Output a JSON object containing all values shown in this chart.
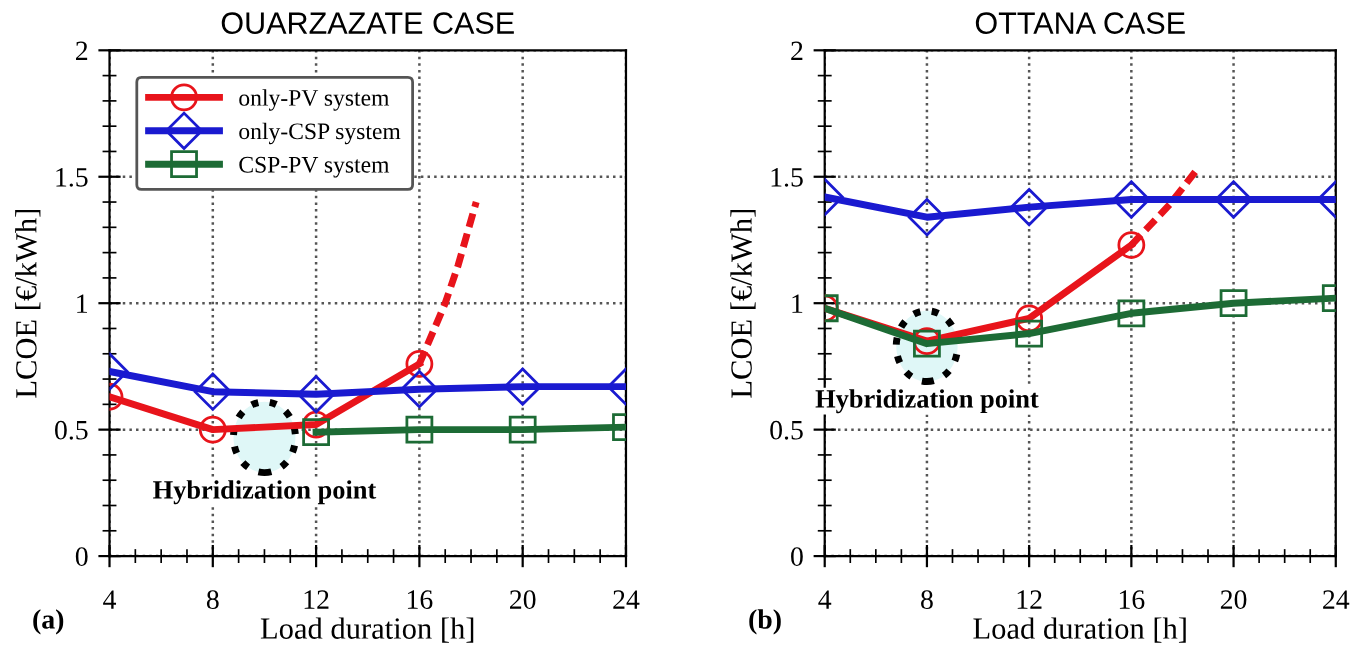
{
  "chart_data": [
    {
      "type": "line",
      "title": "OUARZAZATE CASE",
      "xlabel": "Load duration [h]",
      "ylabel": "LCOE [€/kWh]",
      "x": [
        4,
        8,
        12,
        16,
        20,
        24
      ],
      "xlim": [
        4,
        24
      ],
      "xticks": [
        4,
        8,
        12,
        16,
        20,
        24
      ],
      "ylim": [
        0,
        2
      ],
      "yticks": [
        0,
        0.5,
        1,
        1.5,
        2
      ],
      "grid": true,
      "legend": "top left",
      "series": [
        {
          "name": "only-PV system",
          "color": "#e8141b",
          "marker": "circle",
          "x": [
            4,
            8,
            12,
            16
          ],
          "values": [
            0.63,
            0.5,
            0.52,
            0.76
          ]
        },
        {
          "color": "#e8141b",
          "marker": "none",
          "line_style": "dashed",
          "x": [
            16,
            17,
            17.5,
            18.2
          ],
          "values": [
            0.76,
            1.0,
            1.15,
            1.4
          ]
        },
        {
          "name": "only-CSP system",
          "color": "#1a1ad0",
          "marker": "diamond",
          "values": [
            0.73,
            0.65,
            0.64,
            0.66,
            0.67,
            0.67
          ]
        },
        {
          "name": "CSP-PV system",
          "color": "#1d6b35",
          "marker": "square",
          "values": [
            null,
            null,
            0.49,
            0.5,
            0.5,
            0.51
          ]
        }
      ],
      "annotations": [
        {
          "text": "Hybridization point",
          "x": 10,
          "y": 0.47
        },
        "(a)"
      ]
    },
    {
      "type": "line",
      "title": "OTTANA CASE",
      "xlabel": "Load duration [h]",
      "ylabel": "LCOE [€/kWh]",
      "x": [
        4,
        8,
        12,
        16,
        20,
        24
      ],
      "xlim": [
        4,
        24
      ],
      "xticks": [
        4,
        8,
        12,
        16,
        20,
        24
      ],
      "ylim": [
        0,
        2
      ],
      "yticks": [
        0,
        0.5,
        1,
        1.5,
        2
      ],
      "grid": true,
      "series": [
        {
          "color": "#e8141b",
          "marker": "circle",
          "x": [
            4,
            8,
            12,
            16
          ],
          "values": [
            0.98,
            0.85,
            0.94,
            1.23
          ]
        },
        {
          "color": "#e8141b",
          "marker": "none",
          "line_style": "dashed",
          "x": [
            16,
            17.5,
            18.5
          ],
          "values": [
            1.23,
            1.39,
            1.52
          ]
        },
        {
          "color": "#1a1ad0",
          "marker": "diamond",
          "values": [
            1.42,
            1.34,
            1.38,
            1.41,
            1.41,
            1.41
          ]
        },
        {
          "color": "#1d6b35",
          "marker": "square",
          "values": [
            0.98,
            0.84,
            0.88,
            0.96,
            1.0,
            1.02
          ]
        }
      ],
      "annotations": [
        {
          "text": "Hybridization point",
          "x": 8,
          "y": 0.83
        },
        "(b)"
      ]
    }
  ]
}
